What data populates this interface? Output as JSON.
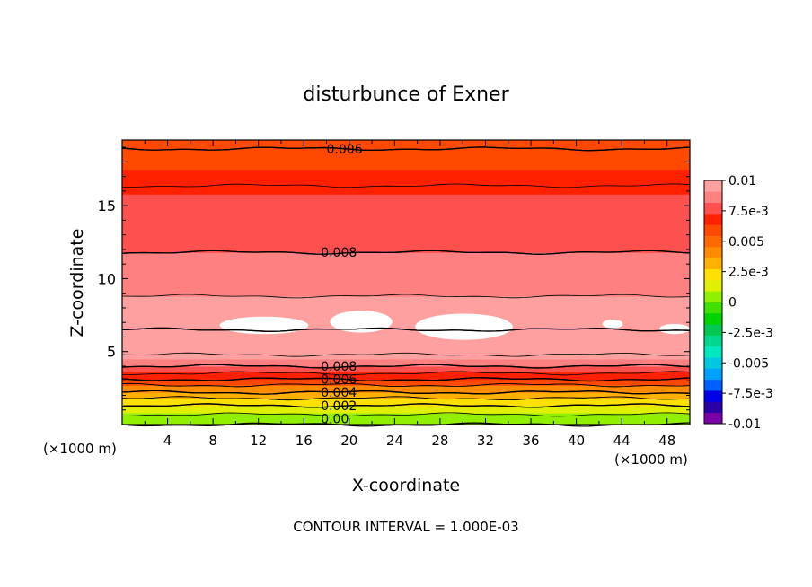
{
  "chart_data": {
    "type": "heatmap",
    "title": "disturbunce of Exner",
    "xlabel": "X-coordinate",
    "ylabel": "Z-coordinate",
    "x_unit_left": "(×1000 m)",
    "x_unit_right": "(×1000 m)",
    "xlim": [
      0,
      50
    ],
    "ylim": [
      0,
      19.5
    ],
    "xticks": [
      4,
      8,
      12,
      16,
      20,
      24,
      28,
      32,
      36,
      40,
      44,
      48
    ],
    "yticks": [
      5,
      10,
      15
    ],
    "footer": "CONTOUR INTERVAL = 1.000E-03",
    "colorbar": {
      "tick_labels": [
        "0.01",
        "7.5e-3",
        "0.005",
        "2.5e-3",
        "0",
        "-2.5e-3",
        "-0.005",
        "-7.5e-3",
        "-0.01"
      ],
      "tick_values": [
        0.01,
        0.0075,
        0.005,
        0.0025,
        0,
        -0.0025,
        -0.005,
        -0.0075,
        -0.01
      ],
      "range": [
        -0.01,
        0.01
      ],
      "colors": [
        "#7A00A8",
        "#2B00A8",
        "#0000E8",
        "#0060FF",
        "#00A0FF",
        "#00C8E0",
        "#00E8C0",
        "#00D890",
        "#00C850",
        "#00D400",
        "#40E000",
        "#90F000",
        "#E0F000",
        "#FFE000",
        "#FFB000",
        "#FF8C00",
        "#FF6A00",
        "#FF4800",
        "#FF2000",
        "#FF5050",
        "#FF8080",
        "#FFA0A0"
      ]
    },
    "contour_interval": 0.001,
    "contour_labels": [
      {
        "text": "0.006",
        "x": 18,
        "z": 18.9
      },
      {
        "text": "0.008",
        "x": 17.5,
        "z": 11.8
      },
      {
        "text": "0.008",
        "x": 17.5,
        "z": 4.0
      },
      {
        "text": "0.006",
        "x": 17.5,
        "z": 3.1
      },
      {
        "text": "0.004",
        "x": 17.5,
        "z": 2.2
      },
      {
        "text": "0.002",
        "x": 17.5,
        "z": 1.3
      },
      {
        "text": "0.00",
        "x": 17.5,
        "z": 0.4
      }
    ],
    "profile": [
      {
        "z": 0.0,
        "value": 0.0
      },
      {
        "z": 0.4,
        "value": 0.0005
      },
      {
        "z": 0.8,
        "value": 0.0012
      },
      {
        "z": 1.3,
        "value": 0.002
      },
      {
        "z": 1.8,
        "value": 0.003
      },
      {
        "z": 2.2,
        "value": 0.004
      },
      {
        "z": 2.7,
        "value": 0.005
      },
      {
        "z": 3.1,
        "value": 0.006
      },
      {
        "z": 3.6,
        "value": 0.0072
      },
      {
        "z": 4.0,
        "value": 0.008
      },
      {
        "z": 4.5,
        "value": 0.0088
      },
      {
        "z": 5.5,
        "value": 0.0095
      },
      {
        "z": 6.5,
        "value": 0.01
      },
      {
        "z": 7.5,
        "value": 0.0096
      },
      {
        "z": 8.8,
        "value": 0.009
      },
      {
        "z": 10.0,
        "value": 0.0085
      },
      {
        "z": 11.8,
        "value": 0.008
      },
      {
        "z": 13.5,
        "value": 0.0076
      },
      {
        "z": 15.8,
        "value": 0.0072
      },
      {
        "z": 17.5,
        "value": 0.0066
      },
      {
        "z": 18.9,
        "value": 0.006
      },
      {
        "z": 19.5,
        "value": 0.0058
      }
    ],
    "max_regions": [
      {
        "x": [
          8.6,
          16.4
        ],
        "z": [
          6.2,
          7.4
        ]
      },
      {
        "x": [
          18.3,
          23.8
        ],
        "z": [
          6.3,
          7.8
        ]
      },
      {
        "x": [
          25.8,
          34.4
        ],
        "z": [
          5.8,
          7.6
        ]
      },
      {
        "x": [
          42.3,
          44.1
        ],
        "z": [
          6.6,
          7.2
        ]
      },
      {
        "x": [
          47.3,
          50.0
        ],
        "z": [
          6.2,
          6.9
        ]
      }
    ]
  }
}
